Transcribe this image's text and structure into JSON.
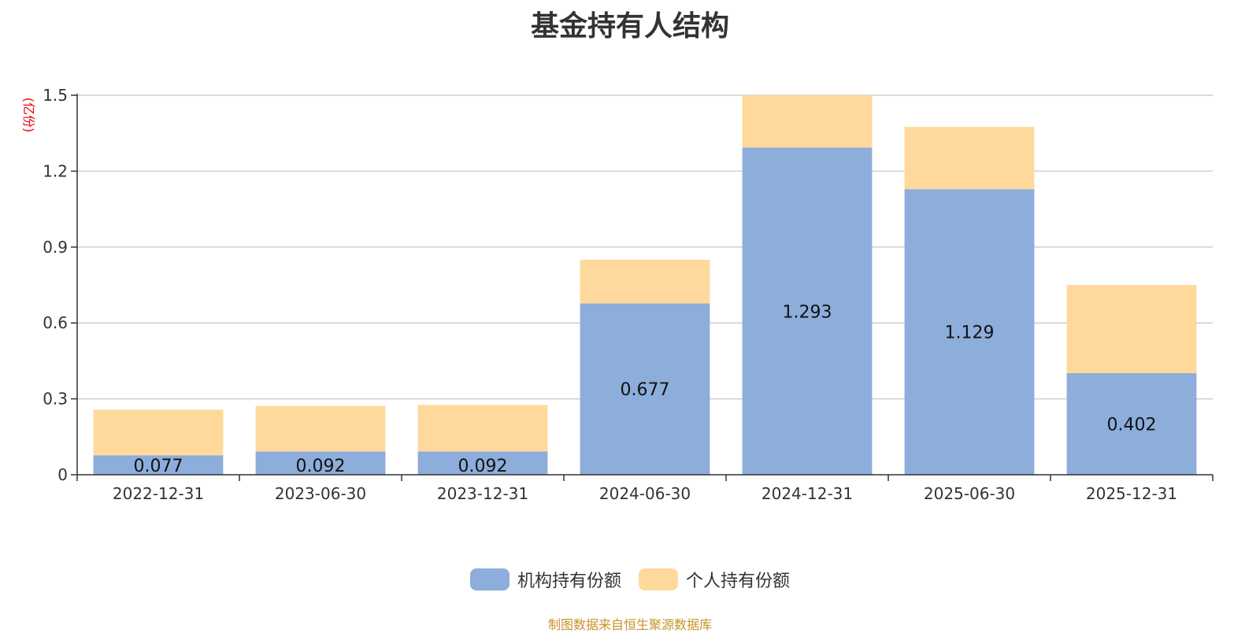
{
  "title": "基金持有人结构",
  "source_note": "制图数据来自恒生聚源数据库",
  "colors": {
    "institutional": "#8daddb",
    "individual": "#fed99b",
    "unit_label": "#e8000b",
    "source_note": "#c8922a"
  },
  "chart_data": {
    "type": "bar",
    "stacked": true,
    "unit": "(亿份)",
    "categories": [
      "2022-12-31",
      "2023-06-30",
      "2023-12-31",
      "2024-06-30",
      "2024-12-31",
      "2025-06-30",
      "2025-12-31"
    ],
    "series": [
      {
        "name": "机构持有份额",
        "values": [
          0.077,
          0.092,
          0.092,
          0.677,
          1.293,
          1.129,
          0.402
        ],
        "labels_shown": true
      },
      {
        "name": "个人持有份额",
        "values": [
          0.18,
          0.18,
          0.184,
          0.173,
          0.207,
          0.246,
          0.348
        ],
        "labels_shown": false
      }
    ],
    "ylim": [
      0,
      1.5
    ],
    "yticks": [
      "0",
      "0.3",
      "0.6",
      "0.9",
      "1.2",
      "1.5"
    ],
    "grid": true,
    "legend_position": "bottom-center"
  }
}
